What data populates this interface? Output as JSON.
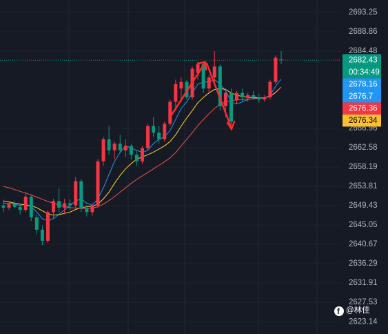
{
  "chart_data": {
    "type": "candlestick",
    "up_color": "#f23645",
    "down_color": "#089981",
    "ylim": [
      2620.36,
      2696.07
    ],
    "yticks": [
      2693.25,
      2688.86,
      2684.48,
      2666.96,
      2662.58,
      2658.19,
      2653.81,
      2649.43,
      2645.05,
      2640.67,
      2636.29,
      2631.91,
      2627.53,
      2623.14
    ],
    "grid": true,
    "candles": [
      [
        2649.5,
        2650.8,
        2648.0,
        2649.0
      ],
      [
        2649.0,
        2650.2,
        2648.5,
        2649.8
      ],
      [
        2649.8,
        2650.5,
        2648.8,
        2649.2
      ],
      [
        2649.2,
        2650.0,
        2647.5,
        2648.5
      ],
      [
        2648.5,
        2652.5,
        2648.0,
        2651.5
      ],
      [
        2651.5,
        2651.8,
        2646.0,
        2646.8
      ],
      [
        2646.8,
        2647.5,
        2643.0,
        2644.0
      ],
      [
        2644.0,
        2645.0,
        2640.5,
        2641.5
      ],
      [
        2641.5,
        2648.5,
        2641.0,
        2648.0
      ],
      [
        2648.0,
        2651.0,
        2646.5,
        2650.5
      ],
      [
        2650.5,
        2653.5,
        2648.0,
        2649.0
      ],
      [
        2649.0,
        2651.0,
        2647.5,
        2650.0
      ],
      [
        2650.0,
        2650.8,
        2648.5,
        2649.5
      ],
      [
        2649.5,
        2656.0,
        2649.0,
        2655.0
      ],
      [
        2655.0,
        2655.5,
        2648.0,
        2648.8
      ],
      [
        2648.8,
        2649.5,
        2647.0,
        2648.0
      ],
      [
        2648.0,
        2650.0,
        2647.2,
        2649.5
      ],
      [
        2649.5,
        2660.0,
        2649.0,
        2659.5
      ],
      [
        2659.5,
        2665.0,
        2658.5,
        2664.5
      ],
      [
        2664.5,
        2667.5,
        2661.0,
        2662.0
      ],
      [
        2662.0,
        2664.0,
        2660.0,
        2663.5
      ],
      [
        2663.5,
        2665.5,
        2661.5,
        2662.0
      ],
      [
        2662.0,
        2664.5,
        2660.5,
        2663.0
      ],
      [
        2663.0,
        2663.5,
        2660.0,
        2661.0
      ],
      [
        2661.0,
        2662.0,
        2658.5,
        2659.5
      ],
      [
        2659.5,
        2663.0,
        2659.0,
        2662.5
      ],
      [
        2662.5,
        2668.0,
        2662.0,
        2667.5
      ],
      [
        2667.5,
        2669.5,
        2665.0,
        2666.0
      ],
      [
        2666.0,
        2667.5,
        2663.5,
        2664.5
      ],
      [
        2664.5,
        2668.5,
        2664.0,
        2668.0
      ],
      [
        2668.0,
        2673.5,
        2667.5,
        2673.0
      ],
      [
        2673.0,
        2678.0,
        2671.0,
        2677.0
      ],
      [
        2676.0,
        2678.5,
        2673.0,
        2677.5
      ],
      [
        2677.5,
        2678.0,
        2673.5,
        2674.0
      ],
      [
        2674.0,
        2681.0,
        2673.5,
        2680.5
      ],
      [
        2679.5,
        2682.0,
        2678.0,
        2681.5
      ],
      [
        2681.5,
        2682.0,
        2675.0,
        2676.0
      ],
      [
        2676.0,
        2679.0,
        2675.0,
        2678.5
      ],
      [
        2678.5,
        2684.5,
        2677.0,
        2681.0
      ],
      [
        2681.0,
        2681.5,
        2671.0,
        2672.0
      ],
      [
        2672.0,
        2676.0,
        2669.5,
        2675.0
      ],
      [
        2675.0,
        2676.0,
        2667.5,
        2668.5
      ],
      [
        2673.5,
        2675.5,
        2672.5,
        2675.0
      ],
      [
        2675.0,
        2676.0,
        2673.0,
        2674.0
      ],
      [
        2674.0,
        2675.0,
        2673.0,
        2674.5
      ],
      [
        2674.5,
        2675.5,
        2673.5,
        2674.0
      ],
      [
        2674.0,
        2674.8,
        2672.8,
        2673.5
      ],
      [
        2673.5,
        2674.5,
        2673.0,
        2674.0
      ],
      [
        2674.0,
        2678.0,
        2673.5,
        2677.5
      ],
      [
        2677.5,
        2683.5,
        2677.0,
        2683.0
      ],
      [
        2682.6,
        2684.5,
        2681.5,
        2682.43
      ]
    ],
    "series": [
      {
        "color": "#2196f3",
        "values": [
          2650,
          2650,
          2649.8,
          2649.5,
          2649.8,
          2649.2,
          2648,
          2646.5,
          2646,
          2646.5,
          2647.5,
          2648.5,
          2649.5,
          2650.5,
          2651,
          2650,
          2649.5,
          2651,
          2653.5,
          2656.5,
          2659.5,
          2661.5,
          2663,
          2662.5,
          2662,
          2661.5,
          2662,
          2663.5,
          2664.5,
          2665,
          2666.5,
          2669,
          2671.5,
          2673,
          2675,
          2677,
          2677.5,
          2677.5,
          2678,
          2677,
          2675.5,
          2673,
          2672.5,
          2673,
          2673.5,
          2673.8,
          2673.8,
          2673.8,
          2674.5,
          2676.5,
          2678.16
        ]
      },
      {
        "color": "#fdd835",
        "values": [
          2650.5,
          2650.3,
          2650,
          2649.8,
          2649.6,
          2649.4,
          2649,
          2648.3,
          2647.6,
          2647.3,
          2647.4,
          2647.7,
          2648,
          2648.6,
          2649,
          2649.2,
          2649.3,
          2649.8,
          2651,
          2652.5,
          2654.5,
          2656.3,
          2657.8,
          2659,
          2660,
          2660.5,
          2661,
          2661.6,
          2662.3,
          2663,
          2664,
          2665.5,
          2667.5,
          2669.3,
          2671,
          2672.8,
          2674,
          2675,
          2675.8,
          2676,
          2675.8,
          2675,
          2674.5,
          2674.2,
          2674,
          2674,
          2673.9,
          2673.9,
          2674.2,
          2675.1,
          2676.34
        ]
      },
      {
        "color": "#ef5350",
        "values": [
          2653.8,
          2653.5,
          2653.1,
          2652.7,
          2652.3,
          2651.9,
          2651.4,
          2650.9,
          2650.4,
          2650,
          2649.6,
          2649.3,
          2649,
          2648.9,
          2648.8,
          2648.8,
          2648.9,
          2649.2,
          2649.8,
          2650.6,
          2651.5,
          2652.5,
          2653.5,
          2654.5,
          2655.4,
          2656.2,
          2657,
          2657.8,
          2658.6,
          2659.4,
          2660.3,
          2661.5,
          2663,
          2664.5,
          2666,
          2667.6,
          2669,
          2670.3,
          2671.5,
          2672.4,
          2673,
          2673.3,
          2673.4,
          2673.5,
          2673.6,
          2673.7,
          2673.8,
          2673.9,
          2674.3,
          2675.2,
          2676.36
        ]
      }
    ],
    "price_labels": [
      {
        "value": 2682.43,
        "color": "#089981"
      },
      {
        "value": 2678.16,
        "color": "#2196f3"
      },
      {
        "value": 2676.7,
        "color": "#2196f3"
      },
      {
        "value": 2676.36,
        "color": "#f23645"
      },
      {
        "value": 2676.34,
        "color": "#fbc02d"
      }
    ],
    "countdown": "00:34:49",
    "watermark": "@林佳"
  }
}
